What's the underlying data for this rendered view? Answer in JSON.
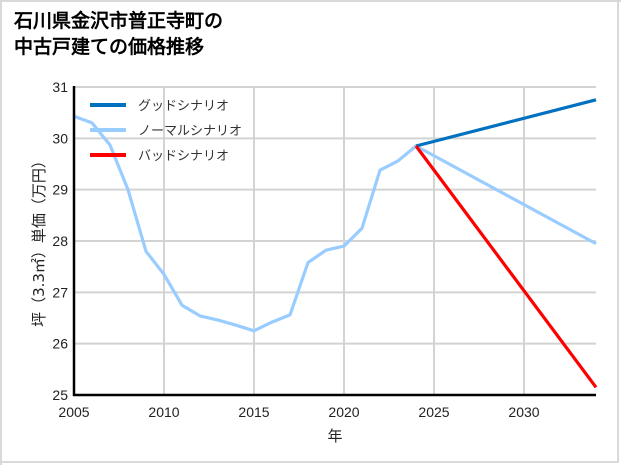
{
  "title": {
    "line1": "石川県金沢市普正寺町の",
    "line2": "中古戸建ての価格推移"
  },
  "chart_data": {
    "type": "line",
    "title": "石川県金沢市普正寺町の中古戸建ての価格推移",
    "xlabel": "年",
    "ylabel": "坪（3.3㎡）単価（万円）",
    "xlim": [
      2005,
      2034
    ],
    "ylim": [
      25,
      31
    ],
    "xticks": [
      2005,
      2010,
      2015,
      2020,
      2025,
      2030
    ],
    "yticks": [
      25,
      26,
      27,
      28,
      29,
      30,
      31
    ],
    "grid": true,
    "legend_position": "upper left",
    "series": [
      {
        "name": "グッドシナリオ",
        "color": "#0070c0",
        "x": [
          2024,
          2034
        ],
        "values": [
          29.85,
          30.75
        ]
      },
      {
        "name": "ノーマルシナリオ",
        "color": "#99ccff",
        "x": [
          2005,
          2006,
          2007,
          2008,
          2009,
          2010,
          2011,
          2012,
          2013,
          2014,
          2015,
          2016,
          2017,
          2018,
          2019,
          2020,
          2021,
          2022,
          2023,
          2024,
          2034
        ],
        "values": [
          30.43,
          30.3,
          29.87,
          29.0,
          27.8,
          27.35,
          26.75,
          26.54,
          26.46,
          26.36,
          26.25,
          26.42,
          26.56,
          27.58,
          27.82,
          27.9,
          28.25,
          29.38,
          29.56,
          29.85,
          27.95
        ]
      },
      {
        "name": "バッドシナリオ",
        "color": "#ff0000",
        "x": [
          2024,
          2034
        ],
        "values": [
          29.85,
          25.15
        ]
      }
    ]
  }
}
